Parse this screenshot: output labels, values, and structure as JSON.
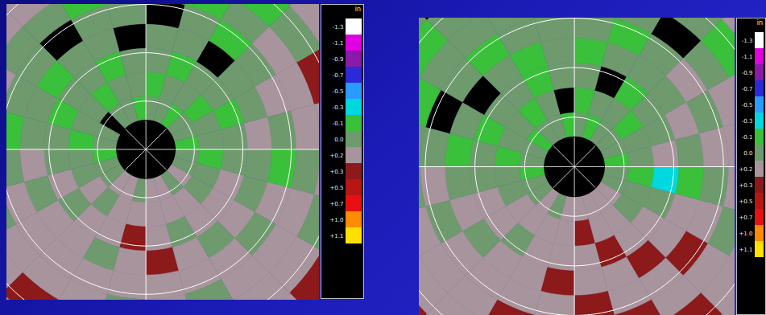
{
  "chart_data": [
    {
      "type": "polar_heatmap",
      "xlim": [
        -2.87,
        3.58
      ],
      "ylim": [
        -3.12,
        3.0
      ],
      "azimuth_edges": [
        0,
        15,
        30,
        45,
        60,
        75,
        90,
        105,
        120,
        135,
        150,
        165,
        180,
        195,
        210,
        225,
        240,
        255,
        270,
        285,
        300,
        315,
        330,
        345,
        360
      ],
      "range_edges": [
        0.6,
        1.1,
        1.6,
        2.1,
        2.6,
        3.1,
        3.6,
        4.2,
        4.8
      ],
      "range_rings": [
        1,
        2,
        3,
        4
      ],
      "cells": [
        [
          0.1,
          -0.05,
          0.1,
          0.1,
          null,
          0.1,
          -0.05,
          0.1
        ],
        [
          0.1,
          0.1,
          -0.05,
          0.1,
          0.1,
          -0.05,
          0.1,
          0.1
        ],
        [
          -0.05,
          0.1,
          0.1,
          null,
          -0.05,
          0.1,
          -0.05,
          0.1
        ],
        [
          0.1,
          -0.05,
          0.1,
          0.1,
          0.1,
          0.25,
          0.1,
          0.25
        ],
        [
          0.1,
          0.1,
          -0.05,
          0.1,
          0.25,
          0.25,
          0.4,
          0.25
        ],
        [
          -0.05,
          0.1,
          0.1,
          0.25,
          0.1,
          0.25,
          0.25,
          0.1
        ],
        [
          0.1,
          -0.05,
          0.1,
          0.1,
          -0.05,
          0.1,
          0.25,
          0.25
        ],
        [
          0.1,
          0.1,
          0.25,
          0.1,
          0.25,
          0.25,
          0.1,
          0.25
        ],
        [
          0.25,
          0.1,
          0.25,
          0.25,
          0.1,
          0.25,
          0.25,
          0.4
        ],
        [
          0.1,
          0.25,
          0.25,
          0.1,
          0.25,
          0.25,
          0.25,
          0.25
        ],
        [
          0.25,
          0.25,
          0.1,
          0.25,
          0.25,
          0.1,
          0.25,
          0.25
        ],
        [
          0.25,
          0.25,
          0.25,
          0.4,
          0.25,
          0.25,
          0.1,
          0.25
        ],
        [
          0.1,
          0.25,
          0.4,
          0.25,
          0.25,
          0.1,
          0.25,
          0.25
        ],
        [
          0.25,
          0.25,
          0.25,
          0.1,
          0.25,
          0.25,
          0.25,
          0.1
        ],
        [
          0.25,
          0.1,
          0.25,
          0.25,
          0.25,
          0.25,
          0.4,
          0.25
        ],
        [
          0.1,
          0.25,
          0.1,
          0.25,
          0.25,
          0.25,
          0.25,
          0.25
        ],
        [
          0.1,
          0.1,
          0.25,
          0.1,
          0.25,
          0.1,
          0.25,
          0.25
        ],
        [
          -0.05,
          0.1,
          0.1,
          0.25,
          0.1,
          0.25,
          0.1,
          0.25
        ],
        [
          0.1,
          -0.05,
          0.1,
          0.1,
          -0.05,
          0.1,
          0.25,
          0.1
        ],
        [
          0.1,
          0.1,
          -0.05,
          0.1,
          0.1,
          0.25,
          0.1,
          0.25
        ],
        [
          null,
          0.1,
          0.1,
          -0.05,
          0.1,
          0.1,
          0.25,
          0.25
        ],
        [
          0.1,
          -0.05,
          0.1,
          0.1,
          null,
          0.1,
          0.25,
          0.1
        ],
        [
          0.1,
          0.1,
          -0.05,
          0.1,
          0.1,
          -0.05,
          0.1,
          0.1
        ],
        [
          -0.05,
          0.1,
          0.1,
          null,
          0.1,
          0.1,
          -0.05,
          0.1
        ]
      ],
      "colorbar": {
        "label": "in",
        "ticks": [
          -1.3,
          -1.1,
          -0.9,
          -0.7,
          -0.5,
          -0.3,
          -0.1,
          {
            "value": 0,
            "label": "0.0"
          },
          {
            "value": 0.2,
            "label": "+0.2"
          },
          {
            "value": 0.3,
            "label": "+0.3"
          },
          {
            "value": 0.5,
            "label": "+0.5"
          },
          {
            "value": 0.7,
            "label": "+0.7"
          },
          {
            "value": 1.0,
            "label": "+1.0"
          },
          {
            "value": 1.1,
            "label": "+1.1"
          }
        ],
        "colors": [
          "#ffffff",
          "#e000e0",
          "#8a1aa8",
          "#2a2ad8",
          "#2a9cff",
          "#00d8e0",
          "#3ac03a",
          "#6e9a6e",
          "#a8949c",
          "#8c1a1a",
          "#b81515",
          "#e81010",
          "#ff8c00",
          "#ffe000"
        ]
      }
    },
    {
      "type": "polar_heatmap",
      "xlim": [
        -3.12,
        3.23
      ],
      "ylim": [
        -3.0,
        3.0
      ],
      "azimuth_edges": [
        0,
        15,
        30,
        45,
        60,
        75,
        90,
        105,
        120,
        135,
        150,
        165,
        180,
        195,
        210,
        225,
        240,
        255,
        270,
        285,
        300,
        315,
        330,
        345,
        360
      ],
      "range_edges": [
        0.6,
        1.1,
        1.6,
        2.1,
        2.6,
        3.1,
        3.6,
        4.2,
        4.8
      ],
      "range_rings": [
        1,
        2,
        3,
        4
      ],
      "cells": [
        [
          0.1,
          -0.05,
          0.1,
          -0.05,
          0.1,
          -0.05,
          0.1,
          0.1
        ],
        [
          -0.05,
          0.1,
          null,
          0.1,
          -0.05,
          0.1,
          0.1,
          -0.05
        ],
        [
          0.1,
          0.1,
          -0.05,
          0.1,
          0.1,
          null,
          0.1,
          0.1
        ],
        [
          0.1,
          -0.05,
          0.1,
          0.1,
          0.25,
          0.1,
          -0.05,
          0.25
        ],
        [
          0.1,
          0.1,
          0.1,
          0.25,
          0.1,
          0.25,
          0.25,
          0.4
        ],
        [
          -0.05,
          0.1,
          0.25,
          0.1,
          0.25,
          0.25,
          0.1,
          0.25
        ],
        [
          0.1,
          -0.05,
          -0.15,
          -0.05,
          0.1,
          0.25,
          0.25,
          0.25
        ],
        [
          0.1,
          0.1,
          0.1,
          0.25,
          0.25,
          0.1,
          0.25,
          0.25
        ],
        [
          0.25,
          0.1,
          0.25,
          0.25,
          0.4,
          0.25,
          0.25,
          0.25
        ],
        [
          0.25,
          0.25,
          0.25,
          0.4,
          0.25,
          0.25,
          0.4,
          0.25
        ],
        [
          0.25,
          0.25,
          0.4,
          0.25,
          0.25,
          0.4,
          0.25,
          0.25
        ],
        [
          0.25,
          0.4,
          0.25,
          0.25,
          0.4,
          0.25,
          0.25,
          0.25
        ],
        [
          0.25,
          0.25,
          0.25,
          0.4,
          0.25,
          0.25,
          0.25,
          0.25
        ],
        [
          0.1,
          0.25,
          0.25,
          0.25,
          0.25,
          0.4,
          0.25,
          0.25
        ],
        [
          0.25,
          0.25,
          0.1,
          0.25,
          0.25,
          0.25,
          0.25,
          0.25
        ],
        [
          0.1,
          0.25,
          0.25,
          0.1,
          0.25,
          0.25,
          0.25,
          0.4
        ],
        [
          0.1,
          0.1,
          0.25,
          0.25,
          0.1,
          0.25,
          0.25,
          0.25
        ],
        [
          -0.05,
          0.1,
          0.1,
          0.1,
          0.25,
          0.1,
          0.25,
          0.1
        ],
        [
          0.1,
          -0.05,
          0.1,
          -0.05,
          0.1,
          0.1,
          0.1,
          0.25
        ],
        [
          0.1,
          0.1,
          -0.05,
          0.1,
          null,
          -0.05,
          0.1,
          0.1
        ],
        [
          -0.05,
          0.1,
          0.1,
          null,
          0.1,
          0.1,
          -0.05,
          0.1
        ],
        [
          0.1,
          -0.05,
          0.1,
          0.1,
          -0.05,
          0.1,
          0.1,
          null
        ],
        [
          0.1,
          0.1,
          -0.05,
          -0.05,
          0.1,
          0.1,
          -0.05,
          0.1
        ],
        [
          -0.05,
          null,
          0.1,
          0.1,
          0.1,
          -0.05,
          0.1,
          0.1
        ]
      ],
      "colorbar": {
        "label": "in",
        "ticks": [
          -1.3,
          -1.1,
          -0.9,
          -0.7,
          -0.5,
          -0.3,
          -0.1,
          {
            "value": 0,
            "label": "0.0"
          },
          {
            "value": 0.2,
            "label": "+0.2"
          },
          {
            "value": 0.3,
            "label": "+0.3"
          },
          {
            "value": 0.5,
            "label": "+0.5"
          },
          {
            "value": 0.7,
            "label": "+0.7"
          },
          {
            "value": 1.0,
            "label": "+1.0"
          },
          {
            "value": 1.1,
            "label": "+1.1"
          }
        ],
        "colors": [
          "#ffffff",
          "#e000e0",
          "#8a1aa8",
          "#2a2ad8",
          "#2a9cff",
          "#00d8e0",
          "#3ac03a",
          "#6e9a6e",
          "#a8949c",
          "#8c1a1a",
          "#b81515",
          "#e81010",
          "#ff8c00",
          "#ffe000"
        ]
      }
    }
  ]
}
